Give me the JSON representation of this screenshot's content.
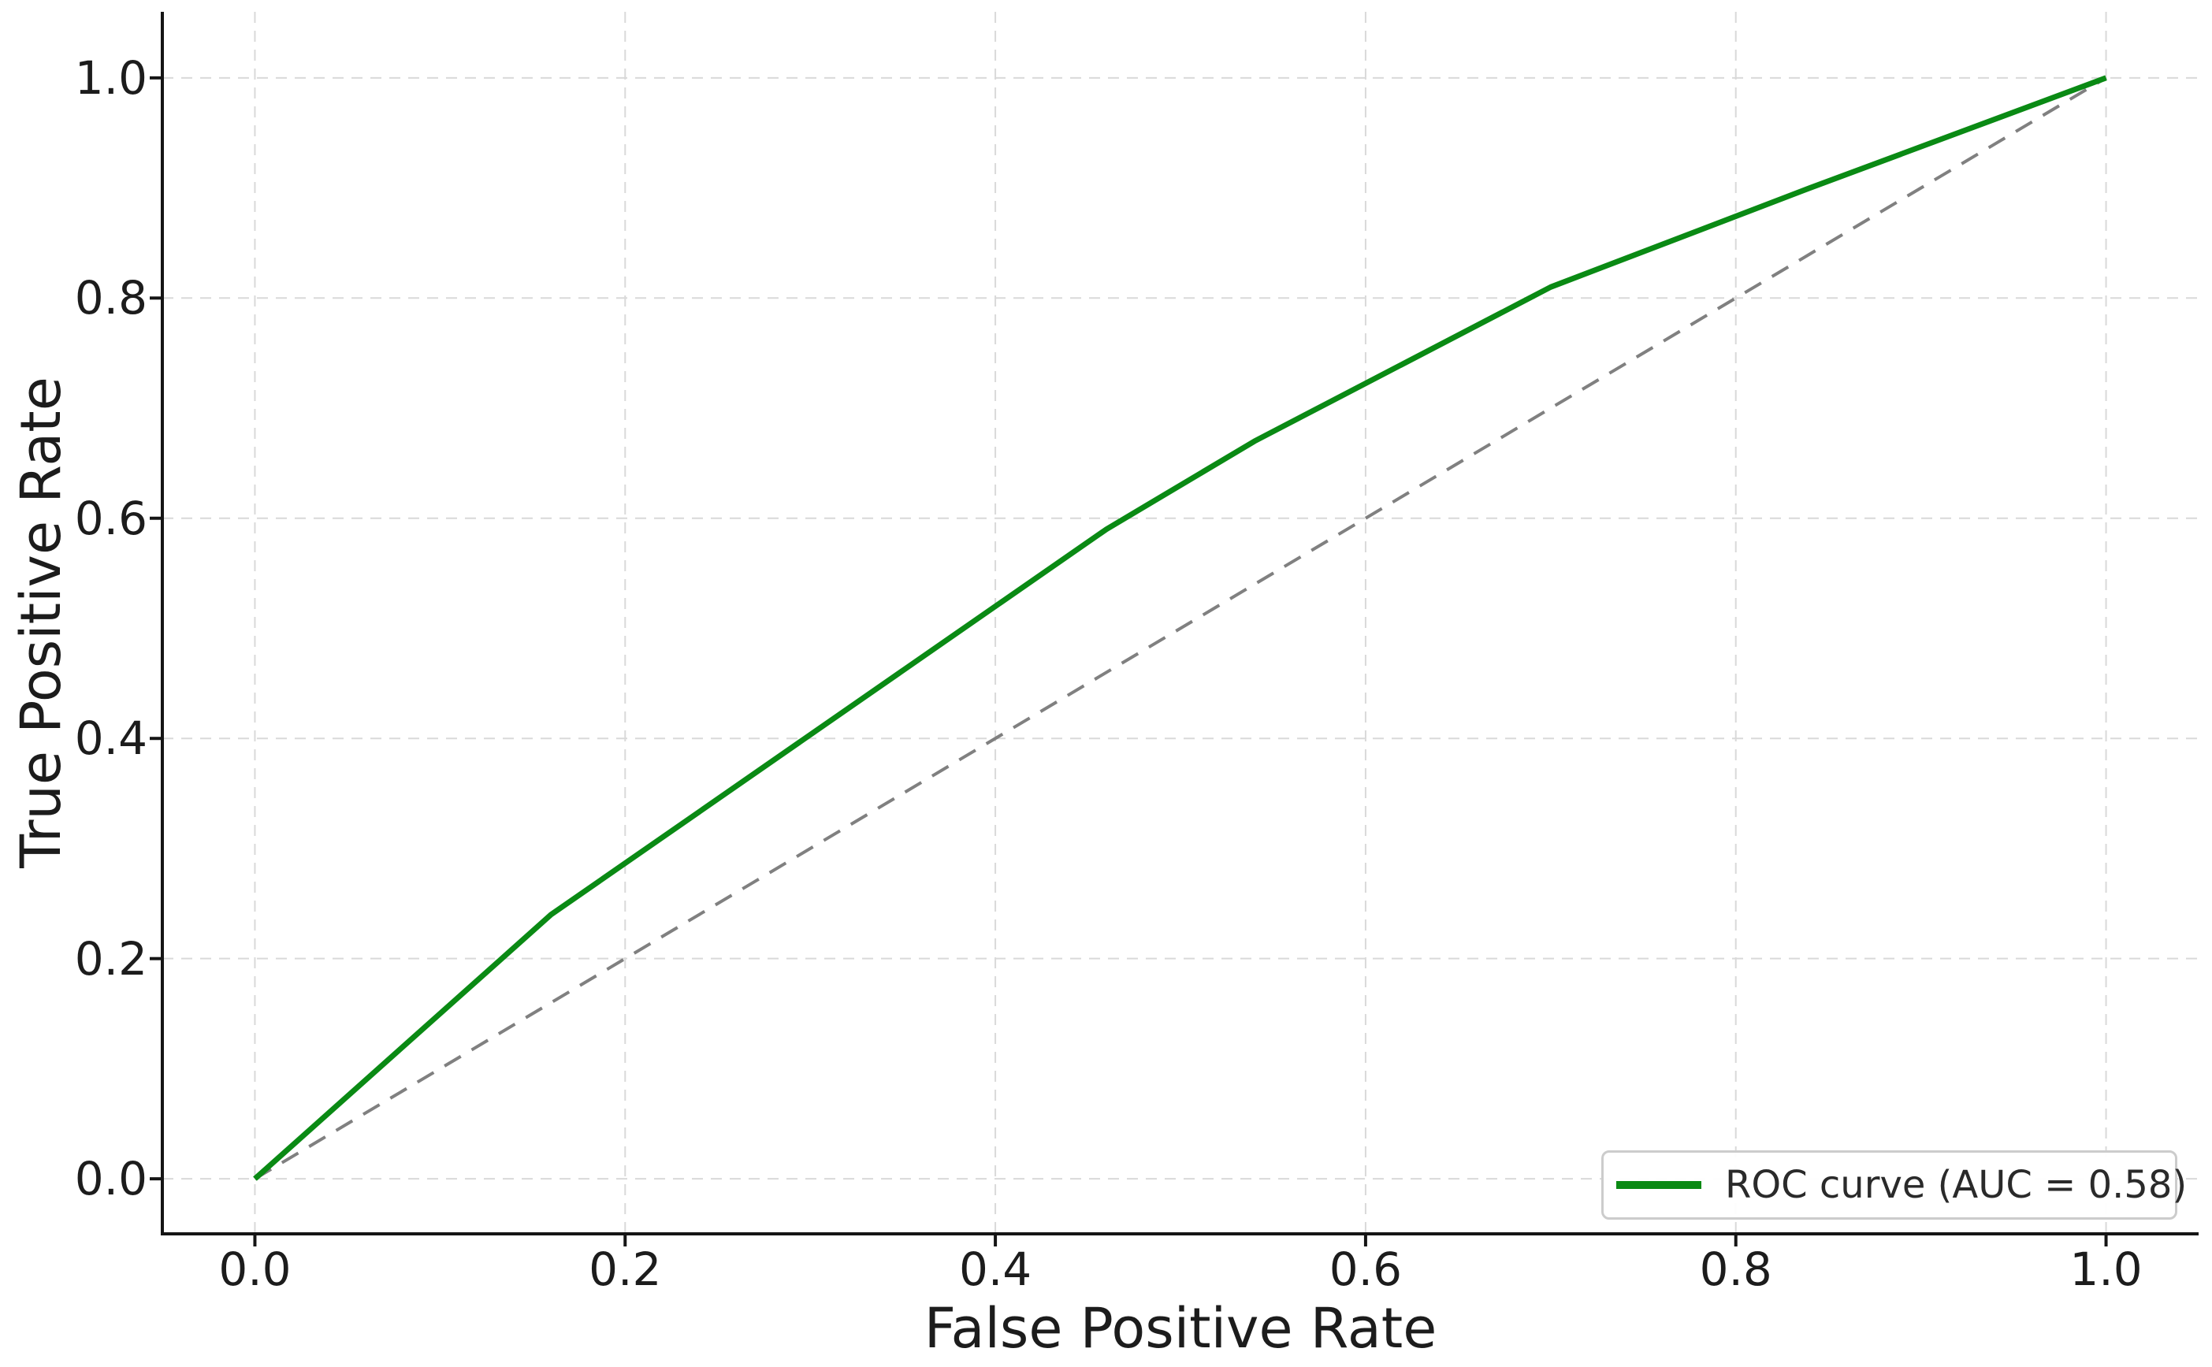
{
  "figure": {
    "background": "#ffffff"
  },
  "chart_data": {
    "type": "line",
    "title": "",
    "xlabel": "False Positive Rate",
    "ylabel": "True Positive Rate",
    "xlim": [
      -0.05,
      1.05
    ],
    "ylim": [
      -0.05,
      1.06
    ],
    "x_ticks": [
      0.0,
      0.2,
      0.4,
      0.6,
      0.8,
      1.0
    ],
    "y_ticks": [
      0.0,
      0.2,
      0.4,
      0.6,
      0.8,
      1.0
    ],
    "x_tick_labels": [
      "0.0",
      "0.2",
      "0.4",
      "0.6",
      "0.8",
      "1.0"
    ],
    "y_tick_labels": [
      "0.0",
      "0.2",
      "0.4",
      "0.6",
      "0.8",
      "1.0"
    ],
    "grid": true,
    "grid_style": {
      "color": "#d9d9d9",
      "width": 2,
      "dash": "14 10"
    },
    "spine_style": {
      "color": "#151515",
      "width": 4,
      "tick_length": 16
    },
    "series": [
      {
        "name": "chance-diagonal",
        "color": "#808080",
        "width": 4,
        "dash": "24 16",
        "in_legend": false,
        "points": [
          [
            0.0,
            0.0
          ],
          [
            1.0,
            1.0
          ]
        ]
      },
      {
        "name": "ROC curve",
        "color": "#0a8a14",
        "width": 7,
        "dash": null,
        "in_legend": true,
        "points": [
          [
            0.0,
            0.0
          ],
          [
            0.16,
            0.24
          ],
          [
            0.46,
            0.59
          ],
          [
            0.54,
            0.67
          ],
          [
            0.7,
            0.81
          ],
          [
            0.84,
            0.9
          ],
          [
            1.0,
            1.0
          ]
        ]
      }
    ],
    "auc": 0.58,
    "legend": {
      "label": "ROC curve (AUC = 0.58)",
      "position": "lower right",
      "border_color": "#cccccc",
      "swatch_color": "#0a8a14"
    }
  }
}
